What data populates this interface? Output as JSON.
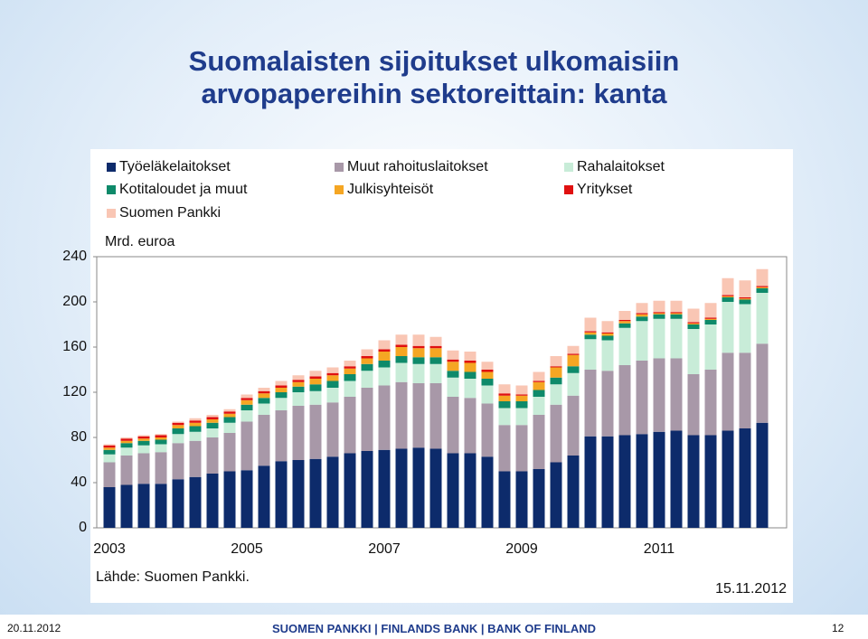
{
  "title": "Suomalaisten sijoitukset ulkomaisiin arvopapereihin sektoreittain: kanta",
  "chart_data": {
    "type": "stacked-bar",
    "y_label": "Mrd. euroa",
    "source": "Lähde: Suomen Pankki.",
    "date_note": "15.11.2012",
    "categories": [
      "2003",
      null,
      null,
      null,
      null,
      null,
      null,
      null,
      "2005",
      null,
      null,
      null,
      null,
      null,
      null,
      null,
      "2007",
      null,
      null,
      null,
      null,
      null,
      null,
      null,
      "2009",
      null,
      null,
      null,
      null,
      null,
      null,
      null,
      "2011",
      null,
      null,
      null,
      null,
      null,
      null
    ],
    "ylim": [
      0,
      240
    ],
    "yticks": [
      0,
      40,
      80,
      120,
      160,
      200,
      240
    ],
    "grid": false,
    "series": [
      {
        "name": "Työeläkelaitokset",
        "color": "#0d2b6b",
        "values": [
          36,
          38,
          39,
          39,
          43,
          45,
          48,
          50,
          51,
          55,
          59,
          60,
          61,
          63,
          66,
          68,
          69,
          70,
          71,
          70,
          66,
          66,
          63,
          50,
          50,
          52,
          58,
          64,
          81,
          81,
          82,
          83,
          85,
          86,
          82,
          82,
          86,
          88,
          93
        ]
      },
      {
        "name": "Muut rahoituslaitokset",
        "color": "#a898a8",
        "values": [
          22,
          26,
          27,
          28,
          32,
          32,
          32,
          34,
          43,
          45,
          45,
          48,
          48,
          48,
          50,
          56,
          57,
          59,
          57,
          58,
          50,
          49,
          47,
          41,
          41,
          48,
          51,
          53,
          59,
          58,
          62,
          65,
          65,
          64,
          54,
          58,
          69,
          67,
          70
        ]
      },
      {
        "name": "Rahalaitokset",
        "color": "#c8ecd8",
        "values": [
          7,
          7,
          7,
          7,
          8,
          8,
          8,
          9,
          10,
          10,
          11,
          12,
          12,
          13,
          14,
          15,
          16,
          17,
          17,
          17,
          17,
          17,
          16,
          15,
          15,
          16,
          18,
          20,
          27,
          27,
          33,
          35,
          35,
          35,
          40,
          40,
          45,
          43,
          45
        ]
      },
      {
        "name": "Kotitaloudet ja muut",
        "color": "#0e8a6a",
        "values": [
          4,
          4,
          4,
          4,
          5,
          5,
          5,
          5,
          5,
          5,
          5,
          5,
          6,
          6,
          6,
          6,
          6,
          6,
          6,
          6,
          6,
          6,
          6,
          6,
          6,
          6,
          6,
          6,
          4,
          4,
          4,
          4,
          4,
          4,
          4,
          4,
          4,
          4,
          4
        ]
      },
      {
        "name": "Julkisyhteisöt",
        "color": "#f5a623",
        "values": [
          2,
          2,
          2,
          2,
          3,
          3,
          3,
          3,
          4,
          4,
          4,
          4,
          5,
          5,
          5,
          5,
          8,
          8,
          8,
          8,
          8,
          8,
          6,
          5,
          5,
          7,
          9,
          10,
          2,
          2,
          2,
          2,
          1,
          1,
          1,
          1,
          1,
          1,
          1
        ]
      },
      {
        "name": "Yritykset",
        "color": "#e01010",
        "values": [
          2,
          2,
          2,
          2,
          2,
          2,
          2,
          2,
          2,
          2,
          2,
          2,
          2,
          2,
          2,
          2,
          2,
          2,
          2,
          2,
          2,
          2,
          2,
          2,
          1,
          1,
          1,
          1,
          1,
          1,
          1,
          1,
          1,
          1,
          1,
          1,
          1,
          1,
          1
        ]
      },
      {
        "name": "Suomen Pankki",
        "color": "#f9c6b4",
        "values": [
          1,
          1,
          1,
          1,
          1,
          2,
          2,
          2,
          3,
          3,
          4,
          4,
          5,
          5,
          5,
          6,
          8,
          9,
          10,
          8,
          8,
          8,
          7,
          8,
          8,
          8,
          9,
          7,
          12,
          10,
          8,
          9,
          10,
          10,
          12,
          13,
          15,
          15,
          15
        ]
      }
    ]
  },
  "footer": {
    "date": "20.11.2012",
    "org": "SUOMEN PANKKI | FINLANDS BANK | BANK OF FINLAND",
    "page": "12"
  }
}
